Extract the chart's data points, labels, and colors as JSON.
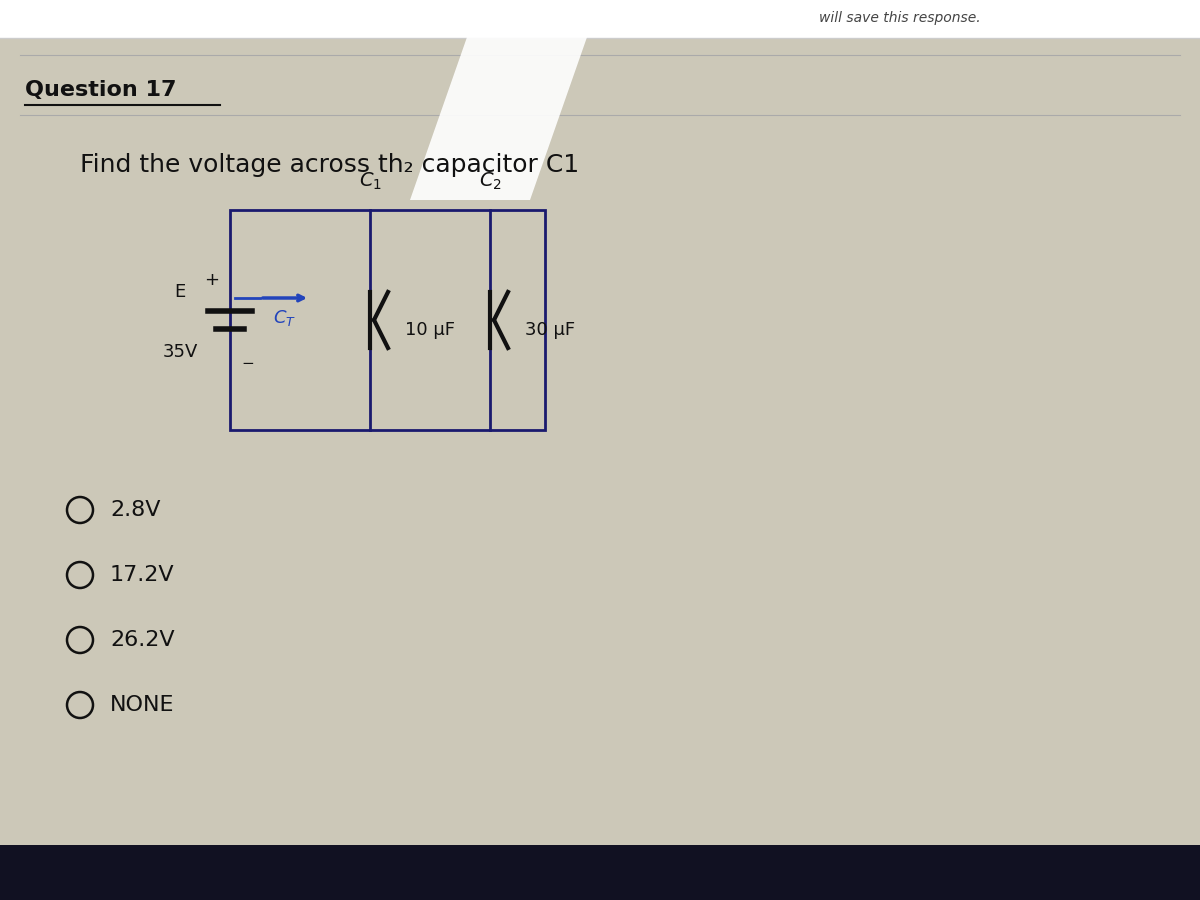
{
  "question_number": "Question 17",
  "question_text_display": "Find the voltage across th₂ capacitor C1",
  "bg_color": "#ccc8b8",
  "text_color": "#111111",
  "circuit_color": "#1a1a6e",
  "blue_color": "#2244bb",
  "source_voltage": "35V",
  "c1_value": "10 μF",
  "c2_value": "30 μF",
  "options": [
    "2.8V",
    "17.2V",
    "26.2V",
    "NONE"
  ],
  "header_text": "will save this response.",
  "bottom_bar_color": "#111122",
  "title_font_size": 16,
  "body_font_size": 16,
  "option_font_size": 15
}
